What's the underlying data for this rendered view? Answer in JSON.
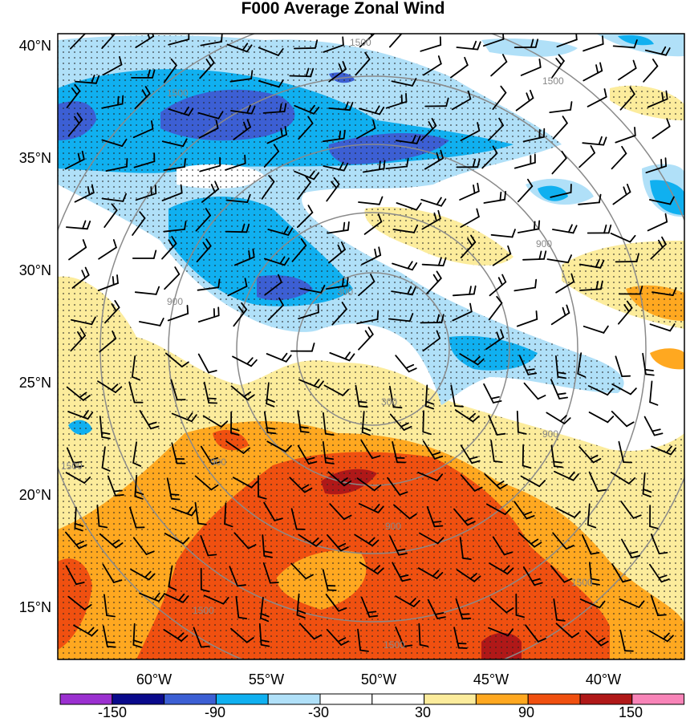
{
  "title": "F000 Average Zonal Wind",
  "map": {
    "lat_labels": [
      "40°N",
      "35°N",
      "30°N",
      "25°N",
      "20°N",
      "15°N"
    ],
    "lon_labels": [
      "60°W",
      "55°W",
      "50°W",
      "45°W",
      "40°W"
    ],
    "lat_range": [
      12.5,
      40.5
    ],
    "lon_range": [
      -63.5,
      -35.5
    ]
  },
  "colorbar": {
    "tick_labels": [
      "-150",
      "-90",
      "-30",
      "30",
      "90",
      "150"
    ],
    "colors": [
      "#9b30d0",
      "#0a0a8c",
      "#3c5fd4",
      "#10b0f0",
      "#b0e0f8",
      "#ffffff",
      "#ffffff",
      "#fcec9c",
      "#ffa820",
      "#f05010",
      "#b01818",
      "#f884b8"
    ]
  },
  "range_rings": {
    "labels": [
      "300",
      "900",
      "1500"
    ],
    "color": "#888888"
  },
  "field_colors": {
    "neg_strong": "#3c5fd4",
    "neg_mid": "#10b0f0",
    "neg_weak": "#b0e0f8",
    "pos_weak": "#fcec9c",
    "pos_mid": "#ffa820",
    "pos_strong": "#f05010",
    "pos_max": "#b01818"
  }
}
